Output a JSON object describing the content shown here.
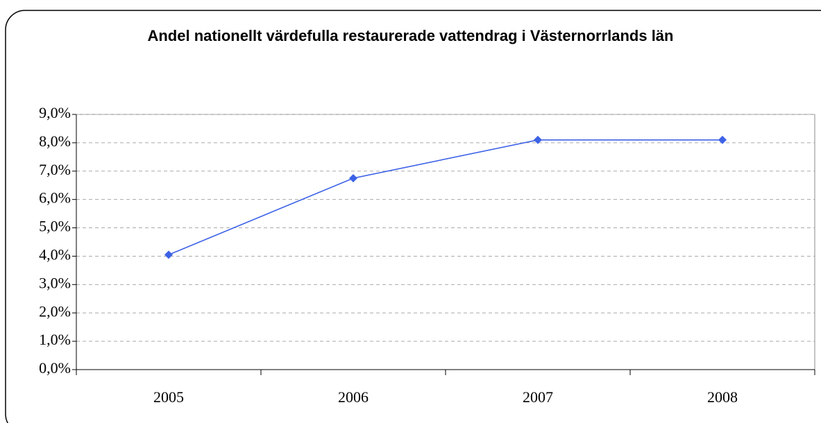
{
  "chart_data": {
    "type": "line",
    "title": "Andel nationellt värdefulla restaurerade vattendrag i Västernorrlands län",
    "categories": [
      "2005",
      "2006",
      "2007",
      "2008"
    ],
    "values": [
      4.05,
      6.75,
      8.1,
      8.1
    ],
    "color": "#3d62e6",
    "ylim": [
      0,
      9
    ],
    "yticks": [
      {
        "value": 0,
        "label": "0,0%"
      },
      {
        "value": 1,
        "label": "1,0%"
      },
      {
        "value": 2,
        "label": "2,0%"
      },
      {
        "value": 3,
        "label": "3,0%"
      },
      {
        "value": 4,
        "label": "4,0%"
      },
      {
        "value": 5,
        "label": "5,0%"
      },
      {
        "value": 6,
        "label": "6,0%"
      },
      {
        "value": 7,
        "label": "7,0%"
      },
      {
        "value": 8,
        "label": "8,0%"
      },
      {
        "value": 9,
        "label": "9,0%"
      }
    ],
    "grid": true
  }
}
